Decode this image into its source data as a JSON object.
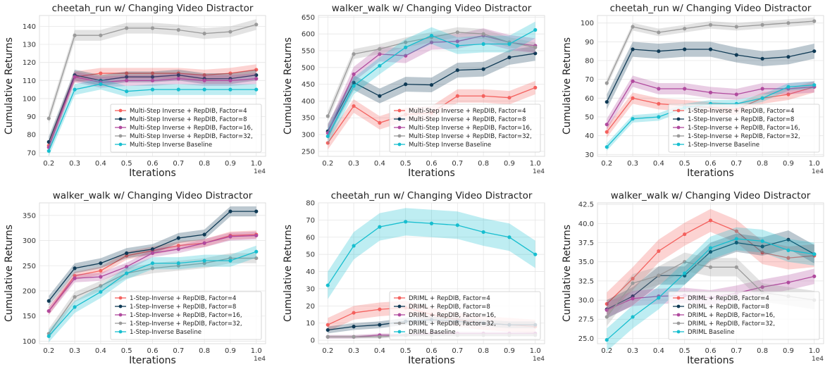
{
  "colors": {
    "Factor=4": "#f4615e",
    "Factor=8": "#0f3a55",
    "Factor=16": "#b04a9e",
    "Factor=32": "#9a9a9a",
    "Baseline": "#17becf"
  },
  "chart_data": [
    {
      "type": "line",
      "title": "cheetah_run w/ Changing Video Distractor",
      "xlabel": "Iterations",
      "ylabel": "Cumulative Returns",
      "x_multiplier": "1e4",
      "x": [
        0.2,
        0.3,
        0.4,
        0.5,
        0.6,
        0.7,
        0.8,
        0.9,
        1.0
      ],
      "xticks": [
        "0.2",
        "0.3",
        "0.4",
        "0.5",
        "0.6",
        "0.7",
        "0.8",
        "0.9",
        "1.0"
      ],
      "ylim": [
        68,
        146
      ],
      "yticks": [
        70,
        80,
        90,
        100,
        110,
        120,
        130,
        140
      ],
      "grid": true,
      "legend": "lower-right",
      "series": [
        {
          "name": "Multi-Step Inverse + RepDIB, Factor=4",
          "key": "Factor=4",
          "values": [
            74,
            112,
            114,
            114,
            114,
            114,
            113,
            114,
            116
          ],
          "band": 3
        },
        {
          "name": "Multi-Step Inverse + RepDIB, Factor=8",
          "key": "Factor=8",
          "values": [
            76,
            113,
            110,
            112,
            112,
            113,
            111,
            111,
            113
          ],
          "band": 3
        },
        {
          "name": "Multi-Step Inverse + RepDIB, Factor=16,",
          "key": "Factor=16",
          "values": [
            73,
            112,
            109,
            110,
            110,
            111,
            110,
            110,
            111
          ],
          "band": 3
        },
        {
          "name": "Multi-Step Inverse + RepDIB, Factor=32,",
          "key": "Factor=32",
          "values": [
            89,
            135,
            135,
            139,
            139,
            138,
            136,
            137,
            141
          ],
          "band": 3
        },
        {
          "name": "Multi-Step Inverse Baseline",
          "key": "Baseline",
          "values": [
            71,
            105,
            108,
            104,
            105,
            105,
            105,
            105,
            105
          ],
          "band": 3
        }
      ]
    },
    {
      "type": "line",
      "title": "walker_walk w/ Changing Video Distractor",
      "xlabel": "Iterations",
      "ylabel": "Cumulative Returns",
      "x_multiplier": "1e4",
      "x": [
        0.2,
        0.3,
        0.4,
        0.5,
        0.6,
        0.7,
        0.8,
        0.9,
        1.0
      ],
      "xticks": [
        "0.2",
        "0.3",
        "0.4",
        "0.5",
        "0.6",
        "0.7",
        "0.8",
        "0.9",
        "1.0"
      ],
      "ylim": [
        235,
        655
      ],
      "yticks": [
        250,
        300,
        350,
        400,
        450,
        500,
        550,
        600,
        650
      ],
      "grid": true,
      "legend": "lower-right",
      "series": [
        {
          "name": "Multi-Step Inverse + RepDIB, Factor=4",
          "key": "Factor=4",
          "values": [
            275,
            385,
            335,
            360,
            365,
            415,
            415,
            410,
            440
          ],
          "band": 20
        },
        {
          "name": "Multi-Step Inverse + RepDIB, Factor=8",
          "key": "Factor=8",
          "values": [
            310,
            455,
            415,
            450,
            448,
            492,
            495,
            530,
            542
          ],
          "band": 22
        },
        {
          "name": "Multi-Step Inverse + RepDIB, Factor=16,",
          "key": "Factor=16",
          "values": [
            305,
            480,
            540,
            535,
            575,
            578,
            595,
            575,
            565
          ],
          "band": 22
        },
        {
          "name": "Multi-Step Inverse + RepDIB, Factor=32,",
          "key": "Factor=32",
          "values": [
            355,
            540,
            555,
            575,
            590,
            605,
            600,
            575,
            560
          ],
          "band": 15
        },
        {
          "name": "Multi-Step Inverse Baseline",
          "key": "Baseline",
          "values": [
            295,
            445,
            505,
            560,
            595,
            565,
            570,
            570,
            612
          ],
          "band": 25
        }
      ]
    },
    {
      "type": "line",
      "title": "cheetah_run w/ Changing Video Distractor",
      "xlabel": "Iterations",
      "ylabel": "Cumulative Returns",
      "x_multiplier": "1e4",
      "x": [
        0.2,
        0.3,
        0.4,
        0.5,
        0.6,
        0.7,
        0.8,
        0.9,
        1.0
      ],
      "xticks": [
        "0.2",
        "0.3",
        "0.4",
        "0.5",
        "0.6",
        "0.7",
        "0.8",
        "0.9",
        "1.0"
      ],
      "ylim": [
        29,
        104
      ],
      "yticks": [
        30,
        40,
        50,
        60,
        70,
        80,
        90,
        100
      ],
      "grid": true,
      "legend": "lower-right",
      "series": [
        {
          "name": "1-Step-Inverse + RepDIB, Factor=4",
          "key": "Factor=4",
          "values": [
            42,
            60,
            57,
            56,
            55,
            54,
            60,
            62,
            66
          ],
          "band": 3
        },
        {
          "name": "1-Step-Inverse + RepDIB, Factor=8",
          "key": "Factor=8",
          "values": [
            58,
            86,
            85,
            86,
            86,
            83,
            81,
            82,
            85
          ],
          "band": 4
        },
        {
          "name": "1-Step-Inverse + RepDIB, Factor=16,",
          "key": "Factor=16",
          "values": [
            46,
            69,
            65,
            65,
            63,
            62,
            65,
            65,
            66
          ],
          "band": 3
        },
        {
          "name": "1-Step-Inverse + RepDIB, Factor=32,",
          "key": "Factor=32",
          "values": [
            68,
            98,
            95,
            97,
            99,
            98,
            99,
            100,
            101
          ],
          "band": 2
        },
        {
          "name": "1-Step-Inverse Baseline",
          "key": "Baseline",
          "values": [
            34,
            49,
            50,
            55,
            57,
            57,
            60,
            66,
            67
          ],
          "band": 2
        }
      ]
    },
    {
      "type": "line",
      "title": "walker_walk w/ Changing Video Distractor",
      "xlabel": "Iterations",
      "ylabel": "Cumulative Returns",
      "x_multiplier": "1e4",
      "x": [
        0.2,
        0.3,
        0.4,
        0.5,
        0.6,
        0.7,
        0.8,
        0.9,
        1.0
      ],
      "xticks": [
        "0.2",
        "0.3",
        "0.4",
        "0.5",
        "0.6",
        "0.7",
        "0.8",
        "0.9",
        "1.0"
      ],
      "ylim": [
        95,
        375
      ],
      "yticks": [
        100,
        150,
        200,
        250,
        300,
        350
      ],
      "grid": true,
      "legend": "lower-right",
      "series": [
        {
          "name": "1-Step-Inverse + RepDIB, Factor=4",
          "key": "Factor=4",
          "values": [
            160,
            230,
            240,
            270,
            280,
            290,
            295,
            310,
            312
          ],
          "band": 8
        },
        {
          "name": "1-Step-Inverse + RepDIB, Factor=8",
          "key": "Factor=8",
          "values": [
            180,
            245,
            255,
            275,
            283,
            305,
            312,
            358,
            358
          ],
          "band": 10
        },
        {
          "name": "1-Step-Inverse + RepDIB, Factor=16,",
          "key": "Factor=16",
          "values": [
            160,
            225,
            228,
            248,
            275,
            283,
            295,
            308,
            310
          ],
          "band": 8
        },
        {
          "name": "1-Step-Inverse + RepDIB, Factor=32,",
          "key": "Factor=32",
          "values": [
            115,
            188,
            210,
            235,
            245,
            250,
            255,
            265,
            265
          ],
          "band": 10
        },
        {
          "name": "1-Step-Inverse Baseline",
          "key": "Baseline",
          "values": [
            110,
            168,
            198,
            235,
            255,
            255,
            260,
            260,
            278
          ],
          "band": 12
        }
      ]
    },
    {
      "type": "line",
      "title": "cheetah_run w/ Changing Video Distractor",
      "xlabel": "Iterations",
      "ylabel": "Cumulative Returns",
      "x_multiplier": "1e4",
      "x": [
        0.2,
        0.3,
        0.4,
        0.5,
        0.6,
        0.7,
        0.8,
        0.9,
        1.0
      ],
      "xticks": [
        "0.2",
        "0.3",
        "0.4",
        "0.5",
        "0.6",
        "0.7",
        "0.8",
        "0.9",
        "1.0"
      ],
      "ylim": [
        -2,
        80
      ],
      "yticks": [
        0,
        10,
        20,
        30,
        40,
        50,
        60,
        70,
        80
      ],
      "grid": true,
      "legend": "lower-right",
      "series": [
        {
          "name": "DRIML + RepDIB, Factor=4",
          "key": "Factor=4",
          "values": [
            9,
            16,
            18,
            19,
            15,
            12,
            10,
            9,
            8
          ],
          "band": 4
        },
        {
          "name": "DRIML + RepDIB, Factor=8",
          "key": "Factor=8",
          "values": [
            6,
            8,
            9,
            11,
            12,
            11,
            10,
            9,
            9
          ],
          "band": 2
        },
        {
          "name": "DRIML + RepDIB, Factor=16,",
          "key": "Factor=16",
          "values": [
            2,
            2,
            3,
            3,
            4,
            4,
            4,
            4,
            4
          ],
          "band": 1
        },
        {
          "name": "DRIML + RepDIB, Factor=32,",
          "key": "Factor=32",
          "values": [
            2,
            2,
            2,
            3,
            3,
            3,
            3,
            3,
            3
          ],
          "band": 1
        },
        {
          "name": "DRIML Baseline",
          "key": "Baseline",
          "values": [
            32,
            55,
            66,
            69,
            68,
            67,
            63,
            60,
            50
          ],
          "band": 8
        }
      ]
    },
    {
      "type": "line",
      "title": "walker_walk w/ Changing Video Distractor",
      "xlabel": "Iterations",
      "ylabel": "Cumulative Returns",
      "x_multiplier": "1e4",
      "x": [
        0.2,
        0.3,
        0.4,
        0.5,
        0.6,
        0.7,
        0.8,
        0.9,
        1.0
      ],
      "xticks": [
        "0.2",
        "0.3",
        "0.4",
        "0.5",
        "0.6",
        "0.7",
        "0.8",
        "0.9",
        "1.0"
      ],
      "ylim": [
        24.3,
        42.7
      ],
      "yticks": [
        25.0,
        27.5,
        30.0,
        32.5,
        35.0,
        37.5,
        40.0,
        42.5
      ],
      "ytick_labels": [
        "25.0",
        "27.5",
        "30.0",
        "32.5",
        "35.0",
        "37.5",
        "40.0",
        "42.5"
      ],
      "grid": true,
      "legend": "lower-right",
      "series": [
        {
          "name": "DRIML + RepDIB, Factor=4",
          "key": "Factor=4",
          "values": [
            29.5,
            32.8,
            36.4,
            38.6,
            40.4,
            39.0,
            36.2,
            35.5,
            35.8
          ],
          "band": 1.5
        },
        {
          "name": "DRIML + RepDIB, Factor=8",
          "key": "Factor=8",
          "values": [
            28.8,
            30.5,
            33.2,
            33.2,
            36.3,
            37.5,
            37.0,
            37.9,
            36.0
          ],
          "band": 1.2
        },
        {
          "name": "DRIML + RepDIB, Factor=16,",
          "key": "Factor=16",
          "values": [
            28.7,
            30.2,
            30.5,
            30.6,
            30.3,
            30.9,
            31.7,
            32.3,
            33.1
          ],
          "band": 1.0
        },
        {
          "name": "DRIML + RepDIB, Factor=32,",
          "key": "Factor=32",
          "values": [
            27.8,
            32.2,
            33.2,
            35.0,
            34.3,
            34.3,
            31.0,
            30.5,
            30.0
          ],
          "band": 1.2
        },
        {
          "name": "DRIML Baseline",
          "key": "Baseline",
          "values": [
            24.8,
            27.8,
            30.3,
            33.5,
            36.8,
            38.0,
            37.7,
            36.5,
            36.0
          ],
          "band": 1.5
        }
      ]
    }
  ]
}
